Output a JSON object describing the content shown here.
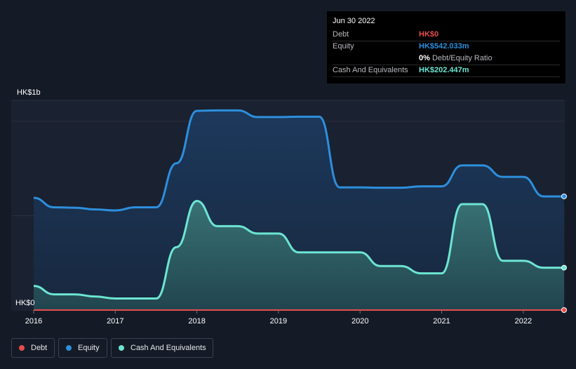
{
  "tooltip": {
    "date": "Jun 30 2022",
    "debt_label": "Debt",
    "debt_value": "HK$0",
    "equity_label": "Equity",
    "equity_value": "HK$542.033m",
    "ratio_value": "0%",
    "ratio_label": "Debt/Equity Ratio",
    "cash_label": "Cash And Equivalents",
    "cash_value": "HK$202.447m"
  },
  "legend": {
    "debt": "Debt",
    "equity": "Equity",
    "cash": "Cash And Equivalents"
  },
  "colors": {
    "debt": "#e64d4d",
    "equity": "#2d8fdd",
    "cash": "#6de5d3",
    "background": "#151b26"
  },
  "chart_data": {
    "type": "area",
    "title": "",
    "xlabel": "",
    "ylabel": "",
    "y_axis_labels": [
      "HK$1b",
      "HK$0"
    ],
    "x_ticks": [
      "2016",
      "2017",
      "2018",
      "2019",
      "2020",
      "2021",
      "2022"
    ],
    "x_tick_values": [
      2016,
      2017,
      2018,
      2019,
      2020,
      2021,
      2022
    ],
    "xlim": [
      2016,
      2022.5
    ],
    "ylim": [
      0,
      1000
    ],
    "unit": "HK$ millions",
    "series": [
      {
        "name": "Equity",
        "key": "equity",
        "x": [
          2016.0,
          2016.25,
          2016.5,
          2016.75,
          2017.0,
          2017.25,
          2017.5,
          2017.75,
          2018.0,
          2018.25,
          2018.5,
          2018.75,
          2019.0,
          2019.25,
          2019.5,
          2019.75,
          2020.0,
          2020.25,
          2020.5,
          2020.75,
          2021.0,
          2021.25,
          2021.5,
          2021.75,
          2022.0,
          2022.25,
          2022.5
        ],
        "values": [
          535,
          490,
          488,
          480,
          475,
          490,
          490,
          700,
          950,
          952,
          952,
          920,
          920,
          922,
          922,
          585,
          585,
          583,
          583,
          590,
          590,
          690,
          690,
          635,
          635,
          542,
          542
        ]
      },
      {
        "name": "Cash And Equivalents",
        "key": "cash",
        "x": [
          2016.0,
          2016.25,
          2016.5,
          2016.75,
          2017.0,
          2017.25,
          2017.5,
          2017.75,
          2018.0,
          2018.25,
          2018.5,
          2018.75,
          2019.0,
          2019.25,
          2019.5,
          2019.75,
          2020.0,
          2020.25,
          2020.5,
          2020.75,
          2021.0,
          2021.25,
          2021.5,
          2021.75,
          2022.0,
          2022.25,
          2022.5
        ],
        "values": [
          115,
          75,
          75,
          65,
          55,
          55,
          55,
          300,
          520,
          400,
          400,
          365,
          365,
          275,
          275,
          275,
          275,
          210,
          210,
          175,
          175,
          505,
          505,
          235,
          235,
          202,
          202
        ]
      },
      {
        "name": "Debt",
        "key": "debt",
        "x": [
          2016.0,
          2022.5
        ],
        "values": [
          0,
          0
        ]
      }
    ],
    "legend_position": "bottom-left",
    "grid": true
  }
}
